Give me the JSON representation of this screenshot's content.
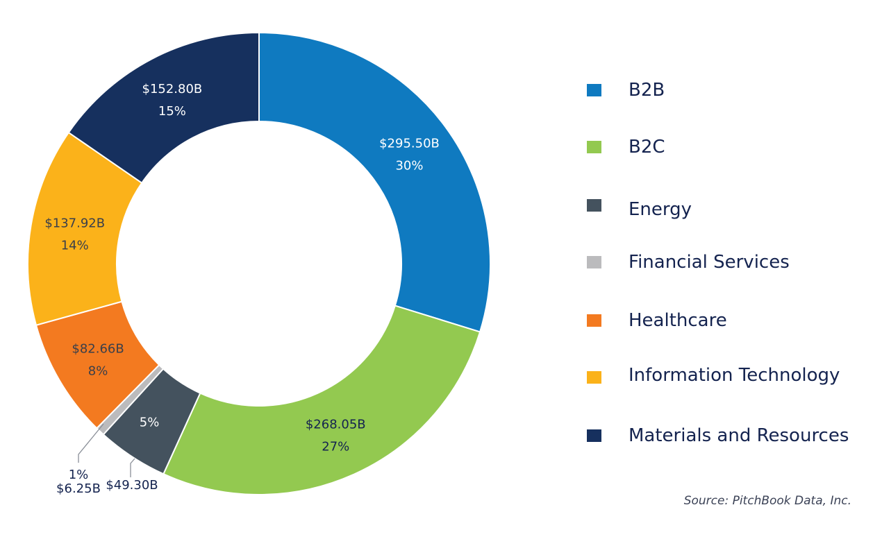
{
  "chart_data": {
    "type": "pie",
    "donut": true,
    "unit": "$B",
    "categories": [
      "B2B",
      "B2C",
      "Energy",
      "Financial Services",
      "Healthcare",
      "Information Technology",
      "Materials and Resources"
    ],
    "values": [
      295.5,
      268.05,
      49.3,
      6.25,
      82.66,
      137.92,
      152.8
    ],
    "value_labels": [
      "$295.50B",
      "$268.05B",
      "$49.30B",
      "$6.25B",
      "$82.66B",
      "$137.92B",
      "$152.80B"
    ],
    "percent_labels": [
      "30%",
      "27%",
      "5%",
      "1%",
      "8%",
      "14%",
      "15%"
    ],
    "colors": [
      "#0f7ac0",
      "#93c950",
      "#44525e",
      "#bbbbbd",
      "#f37a20",
      "#fbb21a",
      "#16305e"
    ],
    "label_colors": [
      "#ffffff",
      "#14234f",
      "#ffffff",
      "#14234f",
      "#3a3f4a",
      "#3a3f4a",
      "#ffffff"
    ],
    "legend_placement": "right",
    "start_angle": "top, clockwise"
  },
  "legend": {
    "items": [
      "B2B",
      "B2C",
      "Energy",
      "Financial Services",
      "Healthcare",
      "Information Technology",
      "Materials and Resources"
    ]
  },
  "source": "Source: PitchBook Data, Inc."
}
